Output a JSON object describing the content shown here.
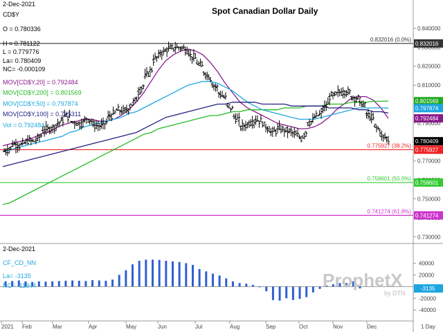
{
  "header": {
    "date": "2-Dec-2021",
    "symbol": "CD$Y",
    "title": "Spot Canadian Dollar Daily"
  },
  "ohlc": {
    "open": "O = 0.780336",
    "high": "H = 0.781122",
    "low": "L = 0.779776",
    "last": "La= 0.780409",
    "change": "NC= -0.000109"
  },
  "ma_legend": [
    {
      "text": "MOV[CD$Y,20] = 0.792484",
      "color": "#8b1a8b"
    },
    {
      "text": "MOV[CD$Y,200] = 0.801569",
      "color": "#22bb22"
    },
    {
      "text": "MOV[CD$Y,50] = 0.797874",
      "color": "#1ca6e0"
    },
    {
      "text": "MOV[CD$Y,100] = 0.795311",
      "color": "#202080"
    }
  ],
  "vol_legend": "Vol = 0.792484",
  "lower_panel": {
    "date": "2-Dec-2021",
    "symbol": "CF_CD_NN",
    "last": "La= -3135",
    "change": "NC= -11844",
    "watermark": "ProphetX",
    "watermark_sub": "by DTN"
  },
  "x_labels": [
    "2021",
    "Feb",
    "Mar",
    "Apr",
    "May",
    "Jun",
    "Jul",
    "Aug",
    "Sep",
    "Oct",
    "Nov",
    "Dec"
  ],
  "period_label": "1 Day",
  "chart_data": {
    "type": "candlestick",
    "title": "Spot Canadian Dollar Daily",
    "y_ticks": [
      "0.840000",
      "0.830000",
      "0.820000",
      "0.810000",
      "0.800000",
      "0.790000",
      "0.780000",
      "0.770000",
      "0.760000",
      "0.750000",
      "0.740000",
      "0.730000"
    ],
    "ylim": [
      0.729,
      0.844
    ],
    "price_path": [
      [
        0.775,
        0.778
      ],
      [
        0.779,
        0.779
      ],
      [
        0.778,
        0.781
      ],
      [
        0.781,
        0.78
      ],
      [
        0.78,
        0.785
      ],
      [
        0.786,
        0.787
      ],
      [
        0.787,
        0.789
      ],
      [
        0.789,
        0.793
      ],
      [
        0.794,
        0.795
      ],
      [
        0.791,
        0.789
      ],
      [
        0.789,
        0.792
      ],
      [
        0.793,
        0.79
      ],
      [
        0.789,
        0.788
      ],
      [
        0.788,
        0.792
      ],
      [
        0.793,
        0.796
      ],
      [
        0.797,
        0.796
      ],
      [
        0.796,
        0.799
      ],
      [
        0.799,
        0.805
      ],
      [
        0.806,
        0.812
      ],
      [
        0.814,
        0.818
      ],
      [
        0.823,
        0.826
      ],
      [
        0.827,
        0.828
      ],
      [
        0.829,
        0.83
      ],
      [
        0.83,
        0.829
      ],
      [
        0.83,
        0.828
      ],
      [
        0.826,
        0.823
      ],
      [
        0.822,
        0.818
      ],
      [
        0.817,
        0.812
      ],
      [
        0.811,
        0.808
      ],
      [
        0.806,
        0.803
      ],
      [
        0.8,
        0.797
      ],
      [
        0.794,
        0.788
      ],
      [
        0.788,
        0.79
      ],
      [
        0.79,
        0.793
      ],
      [
        0.792,
        0.79
      ],
      [
        0.789,
        0.786
      ],
      [
        0.785,
        0.786
      ],
      [
        0.787,
        0.786
      ],
      [
        0.786,
        0.785
      ],
      [
        0.785,
        0.781
      ],
      [
        0.781,
        0.788
      ],
      [
        0.79,
        0.791
      ],
      [
        0.793,
        0.795
      ],
      [
        0.797,
        0.8
      ],
      [
        0.804,
        0.805
      ],
      [
        0.806,
        0.807
      ],
      [
        0.807,
        0.806
      ],
      [
        0.804,
        0.802
      ],
      [
        0.802,
        0.797
      ],
      [
        0.795,
        0.791
      ],
      [
        0.789,
        0.785
      ],
      [
        0.783,
        0.782
      ],
      [
        0.781,
        0.78
      ]
    ],
    "series": [
      {
        "name": "MOV[CD$Y,20]",
        "color": "#8b1a8b",
        "values": [
          0.778,
          0.779,
          0.78,
          0.781,
          0.782,
          0.784,
          0.785,
          0.787,
          0.789,
          0.79,
          0.791,
          0.792,
          0.792,
          0.791,
          0.791,
          0.792,
          0.794,
          0.797,
          0.801,
          0.806,
          0.812,
          0.818,
          0.823,
          0.826,
          0.828,
          0.829,
          0.828,
          0.826,
          0.822,
          0.817,
          0.811,
          0.806,
          0.801,
          0.798,
          0.796,
          0.794,
          0.792,
          0.79,
          0.789,
          0.788,
          0.787,
          0.787,
          0.788,
          0.79,
          0.793,
          0.797,
          0.8,
          0.803,
          0.804,
          0.804,
          0.802,
          0.798,
          0.7925
        ]
      },
      {
        "name": "MOV[CD$Y,200]",
        "color": "#22bb22",
        "values": [
          0.747,
          0.748,
          0.75,
          0.752,
          0.754,
          0.756,
          0.758,
          0.76,
          0.762,
          0.764,
          0.766,
          0.768,
          0.77,
          0.772,
          0.774,
          0.776,
          0.778,
          0.78,
          0.782,
          0.784,
          0.785,
          0.787,
          0.788,
          0.789,
          0.79,
          0.791,
          0.792,
          0.793,
          0.794,
          0.794,
          0.795,
          0.796,
          0.796,
          0.797,
          0.797,
          0.797,
          0.797,
          0.797,
          0.798,
          0.798,
          0.798,
          0.799,
          0.799,
          0.799,
          0.8,
          0.8,
          0.8,
          0.801,
          0.801,
          0.801,
          0.8015,
          0.8015,
          0.8016
        ]
      },
      {
        "name": "MOV[CD$Y,50]",
        "color": "#1ca6e0",
        "values": [
          0.775,
          0.776,
          0.777,
          0.778,
          0.779,
          0.78,
          0.781,
          0.782,
          0.783,
          0.785,
          0.786,
          0.788,
          0.789,
          0.79,
          0.791,
          0.792,
          0.793,
          0.795,
          0.796,
          0.798,
          0.8,
          0.802,
          0.804,
          0.806,
          0.808,
          0.81,
          0.811,
          0.812,
          0.812,
          0.811,
          0.809,
          0.807,
          0.804,
          0.801,
          0.799,
          0.797,
          0.796,
          0.795,
          0.794,
          0.793,
          0.792,
          0.792,
          0.792,
          0.793,
          0.794,
          0.795,
          0.796,
          0.797,
          0.798,
          0.798,
          0.798,
          0.798,
          0.7979
        ]
      },
      {
        "name": "MOV[CD$Y,100]",
        "color": "#202080",
        "values": [
          0.767,
          0.768,
          0.769,
          0.77,
          0.771,
          0.772,
          0.773,
          0.774,
          0.775,
          0.776,
          0.777,
          0.778,
          0.779,
          0.78,
          0.781,
          0.782,
          0.783,
          0.784,
          0.785,
          0.787,
          0.789,
          0.791,
          0.793,
          0.794,
          0.795,
          0.796,
          0.797,
          0.798,
          0.799,
          0.8,
          0.8,
          0.801,
          0.801,
          0.801,
          0.801,
          0.8,
          0.8,
          0.8,
          0.8,
          0.799,
          0.799,
          0.799,
          0.799,
          0.799,
          0.798,
          0.798,
          0.798,
          0.798,
          0.797,
          0.797,
          0.796,
          0.796,
          0.7953
        ]
      }
    ],
    "reference_lines": [
      {
        "label": "0.832016 (0.0%)",
        "axis_label": "0.832016",
        "value": 0.832016,
        "color": "#333333",
        "badge": "#333333"
      },
      {
        "label": "0.775927 (38.2%)",
        "axis_label": "0.775927",
        "value": 0.775927,
        "color": "#ee2222",
        "badge": "#ee2222"
      },
      {
        "label": "0.758601 (50.0%)",
        "axis_label": "0.758601",
        "value": 0.758601,
        "color": "#33cc33",
        "badge": "#33cc33"
      },
      {
        "label": "0.741274 (61.8%)",
        "axis_label": "0.741274",
        "value": 0.741274,
        "color": "#cc33cc",
        "badge": "#cc33cc"
      }
    ],
    "value_badges": [
      {
        "text": "0.801569",
        "value": 0.801569,
        "color": "#22aa22"
      },
      {
        "text": "0.797874",
        "value": 0.797874,
        "color": "#1ca6e0"
      },
      {
        "text": "0.792484",
        "value": 0.792484,
        "color": "#8b1a8b"
      },
      {
        "text": "0.780409",
        "value": 0.780409,
        "color": "#000000"
      }
    ],
    "lower": {
      "type": "bar",
      "y_ticks": [
        "40000",
        "20000",
        "0",
        "-20000",
        "-40000"
      ],
      "ylim": [
        -48000,
        50000
      ],
      "last_badge": "-3135",
      "values": [
        9000,
        9500,
        10500,
        9000,
        8000,
        9000,
        8500,
        9000,
        9500,
        10000,
        10500,
        10000,
        9500,
        11000,
        10500,
        10000,
        12000,
        20000,
        28000,
        38000,
        44000,
        46000,
        46000,
        45500,
        44000,
        43000,
        42000,
        40000,
        37000,
        30000,
        26000,
        22000,
        19000,
        14000,
        9000,
        6000,
        5000,
        3000,
        0,
        -8000,
        -23000,
        -24000,
        -20000,
        -23000,
        -21000,
        -18000,
        -10000,
        -4000,
        2000,
        4000,
        6000,
        6000,
        9000,
        -3135
      ]
    }
  }
}
